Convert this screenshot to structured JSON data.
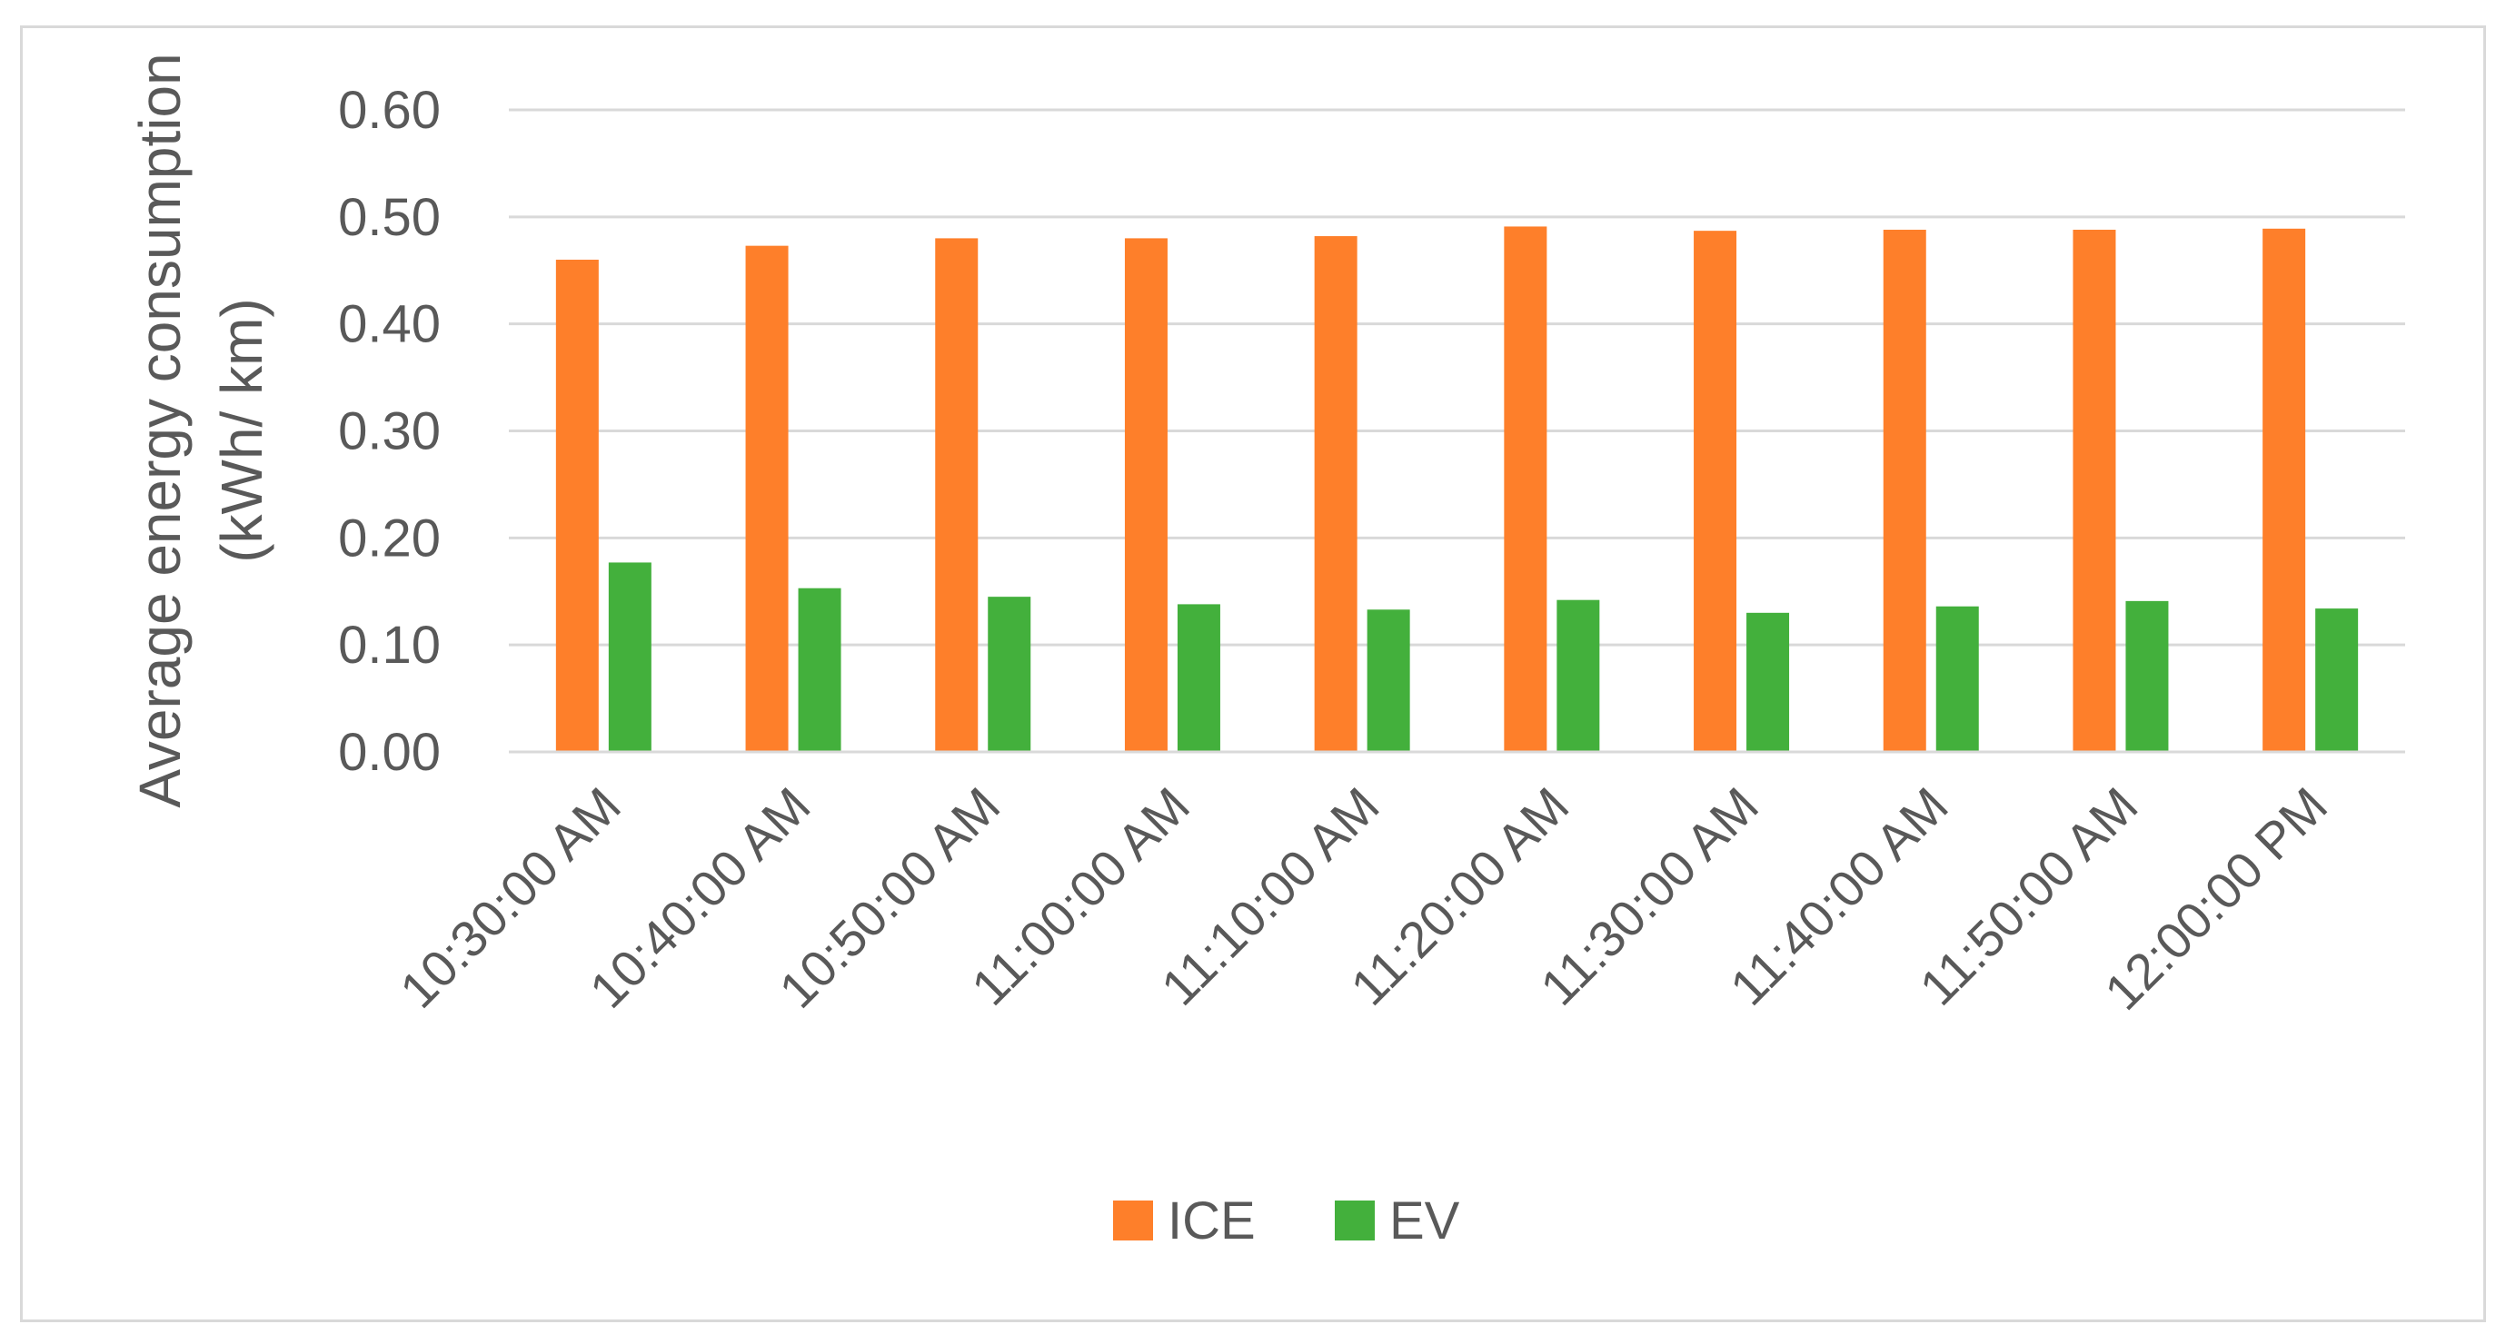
{
  "chart_data": {
    "type": "bar",
    "title": "",
    "xlabel": "",
    "ylabel_lines": [
      "Average energy consumption",
      "(kWh/ km)"
    ],
    "ylim": [
      0,
      0.6
    ],
    "yticks": [
      "0.00",
      "0.10",
      "0.20",
      "0.30",
      "0.40",
      "0.50",
      "0.60"
    ],
    "ytick_values": [
      0,
      0.1,
      0.2,
      0.3,
      0.4,
      0.5,
      0.6
    ],
    "grid": true,
    "legend_position": "bottom",
    "categories": [
      "10:30:00 AM",
      "10:40:00 AM",
      "10:50:00 AM",
      "11:00:00 AM",
      "11:10:00 AM",
      "11:20:00 AM",
      "11:30:00 AM",
      "11:40:00 AM",
      "11:50:00 AM",
      "12:00:00 PM"
    ],
    "series": [
      {
        "name": "ICE",
        "color": "#fe7f2a",
        "values": [
          0.46,
          0.473,
          0.48,
          0.48,
          0.482,
          0.491,
          0.487,
          0.488,
          0.488,
          0.489
        ]
      },
      {
        "name": "EV",
        "color": "#43b03c",
        "values": [
          0.177,
          0.153,
          0.145,
          0.138,
          0.133,
          0.142,
          0.13,
          0.136,
          0.141,
          0.134
        ]
      }
    ]
  }
}
